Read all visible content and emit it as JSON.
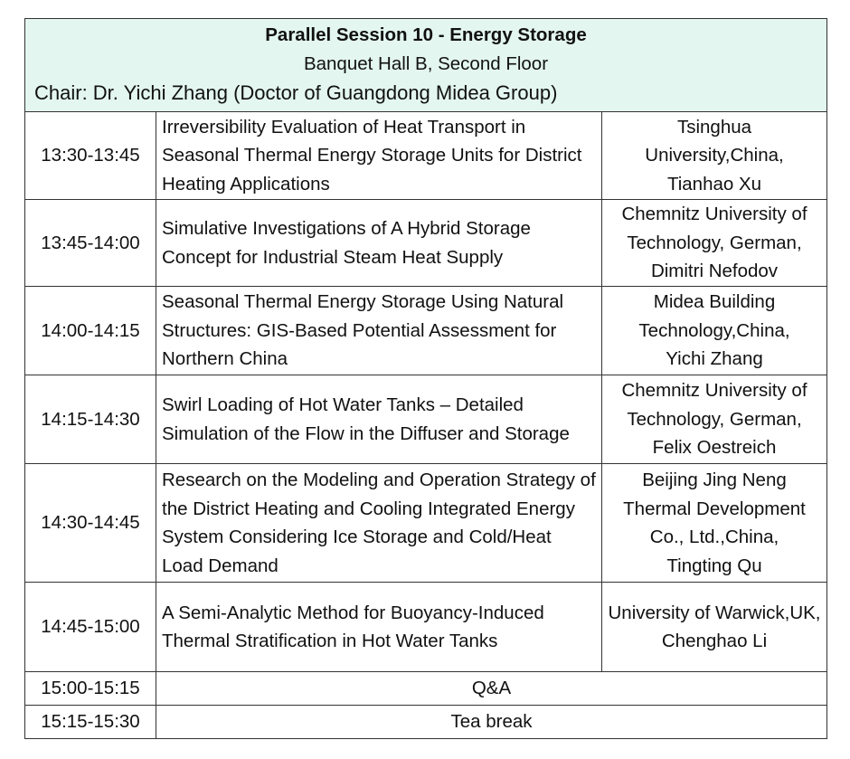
{
  "header": {
    "title": "Parallel Session 10 - Energy Storage",
    "venue": "Banquet Hall B, Second Floor",
    "chair": "Chair: Dr. Yichi Zhang (Doctor of Guangdong Midea Group)",
    "background_color": "#e3f6f0"
  },
  "sessions": [
    {
      "time": "13:30-13:45",
      "title": "Irreversibility Evaluation of Heat Transport in Seasonal Thermal Energy Storage Units for District Heating Applications",
      "affiliation": "Tsinghua University,China,",
      "speaker": "Tianhao Xu"
    },
    {
      "time": "13:45-14:00",
      "title": "Simulative Investigations of A Hybrid Storage Concept for Industrial Steam Heat Supply",
      "affiliation": "Chemnitz University of Technology, German,",
      "speaker": "Dimitri Nefodov"
    },
    {
      "time": "14:00-14:15",
      "title": "Seasonal Thermal Energy Storage Using Natural Structures: GIS-Based Potential Assessment for Northern China",
      "affiliation": "Midea Building Technology,China,",
      "speaker": "Yichi Zhang"
    },
    {
      "time": "14:15-14:30",
      "title": "Swirl Loading of Hot Water Tanks – Detailed Simulation of the Flow in the Diffuser and Storage",
      "affiliation": "Chemnitz University of Technology, German,",
      "speaker": "Felix Oestreich"
    },
    {
      "time": "14:30-14:45",
      "title": "Research on the Modeling and Operation Strategy of the District Heating and Cooling Integrated Energy System Considering Ice Storage and Cold/Heat Load Demand",
      "affiliation": "Beijing Jing Neng Thermal Development Co., Ltd.,China,",
      "speaker": "Tingting Qu"
    },
    {
      "time": "14:45-15:00",
      "title": "A Semi-Analytic Method for Buoyancy-Induced Thermal Stratification in Hot Water Tanks",
      "affiliation": "University of Warwick,UK,",
      "speaker": "Chenghao Li"
    }
  ],
  "breaks": [
    {
      "time": "15:00-15:15",
      "label": "Q&A"
    },
    {
      "time": "15:15-15:30",
      "label": "Tea break"
    }
  ]
}
